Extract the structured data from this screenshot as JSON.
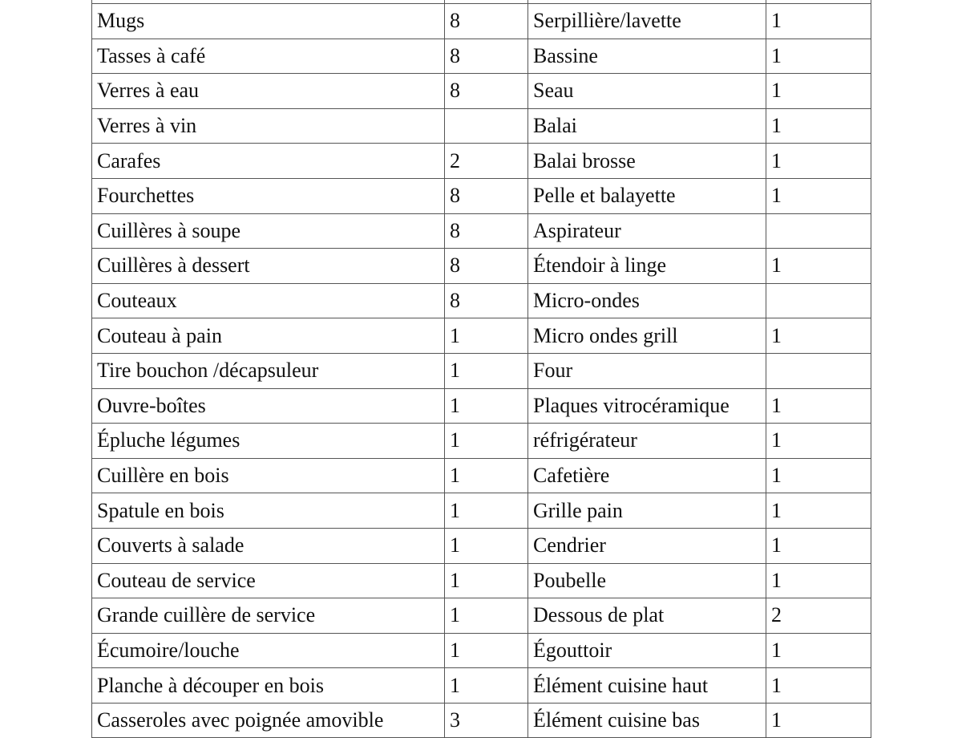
{
  "table": {
    "rows": [
      [
        "",
        "",
        "",
        ""
      ],
      [
        "Mugs",
        "8",
        "Serpillière/lavette",
        "1"
      ],
      [
        "Tasses à café",
        "8",
        "Bassine",
        "1"
      ],
      [
        "Verres à eau",
        "8",
        "Seau",
        "1"
      ],
      [
        "Verres à vin",
        "",
        "Balai",
        "1"
      ],
      [
        "Carafes",
        "2",
        "Balai brosse",
        "1"
      ],
      [
        "Fourchettes",
        "8",
        "Pelle et balayette",
        "1"
      ],
      [
        "Cuillères à soupe",
        "8",
        "Aspirateur",
        ""
      ],
      [
        "Cuillères à dessert",
        "8",
        "Étendoir à linge",
        "1"
      ],
      [
        "Couteaux",
        "8",
        "Micro-ondes",
        ""
      ],
      [
        "Couteau à pain",
        "1",
        "Micro ondes grill",
        "1"
      ],
      [
        "Tire bouchon /décapsuleur",
        "1",
        "Four",
        ""
      ],
      [
        "Ouvre-boîtes",
        "1",
        "Plaques vitrocéramique",
        "1"
      ],
      [
        "Épluche légumes",
        "1",
        "réfrigérateur",
        "1"
      ],
      [
        "Cuillère en bois",
        "1",
        "Cafetière",
        "1"
      ],
      [
        "Spatule en bois",
        "1",
        "Grille pain",
        "1"
      ],
      [
        "Couverts à salade",
        "1",
        "Cendrier",
        "1"
      ],
      [
        "Couteau de service",
        "1",
        "Poubelle",
        "1"
      ],
      [
        "Grande cuillère de service",
        "1",
        "Dessous de plat",
        "2"
      ],
      [
        "Écumoire/louche",
        "1",
        "Égouttoir",
        "1"
      ],
      [
        "Planche à découper en bois",
        "1",
        "Élément cuisine haut",
        "1"
      ],
      [
        "Casseroles avec poignée amovible",
        "3",
        "Élément cuisine bas",
        "1"
      ]
    ]
  }
}
